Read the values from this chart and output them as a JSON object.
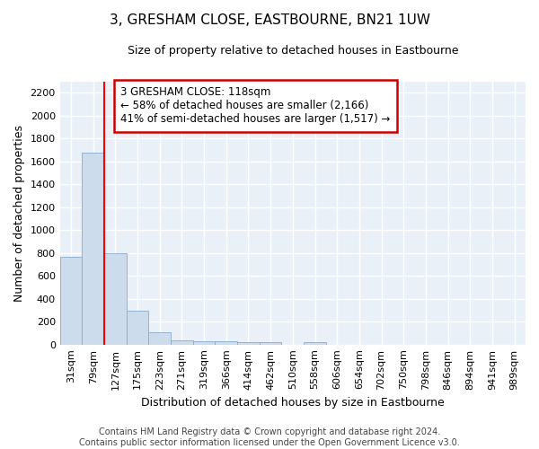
{
  "title": "3, GRESHAM CLOSE, EASTBOURNE, BN21 1UW",
  "subtitle": "Size of property relative to detached houses in Eastbourne",
  "xlabel": "Distribution of detached houses by size in Eastbourne",
  "ylabel": "Number of detached properties",
  "bar_color": "#ccdcec",
  "bar_edge_color": "#88aacc",
  "background_color": "#eaf0f8",
  "grid_color": "#ffffff",
  "fig_background": "#ffffff",
  "categories": [
    "31sqm",
    "79sqm",
    "127sqm",
    "175sqm",
    "223sqm",
    "271sqm",
    "319sqm",
    "366sqm",
    "414sqm",
    "462sqm",
    "510sqm",
    "558sqm",
    "606sqm",
    "654sqm",
    "702sqm",
    "750sqm",
    "798sqm",
    "846sqm",
    "894sqm",
    "941sqm",
    "989sqm"
  ],
  "values": [
    770,
    1680,
    800,
    295,
    110,
    40,
    28,
    25,
    20,
    20,
    0,
    20,
    0,
    0,
    0,
    0,
    0,
    0,
    0,
    0,
    0
  ],
  "ylim": [
    0,
    2300
  ],
  "yticks": [
    0,
    200,
    400,
    600,
    800,
    1000,
    1200,
    1400,
    1600,
    1800,
    2000,
    2200
  ],
  "red_line_x": 1.5,
  "annotation_title": "3 GRESHAM CLOSE: 118sqm",
  "annotation_line1": "← 58% of detached houses are smaller (2,166)",
  "annotation_line2": "41% of semi-detached houses are larger (1,517) →",
  "annotation_box_facecolor": "#ffffff",
  "annotation_box_edgecolor": "#cc0000",
  "footer_line1": "Contains HM Land Registry data © Crown copyright and database right 2024.",
  "footer_line2": "Contains public sector information licensed under the Open Government Licence v3.0.",
  "title_fontsize": 11,
  "subtitle_fontsize": 9,
  "ylabel_fontsize": 9,
  "xlabel_fontsize": 9,
  "tick_fontsize": 8,
  "footer_fontsize": 7,
  "annotation_fontsize": 8.5
}
